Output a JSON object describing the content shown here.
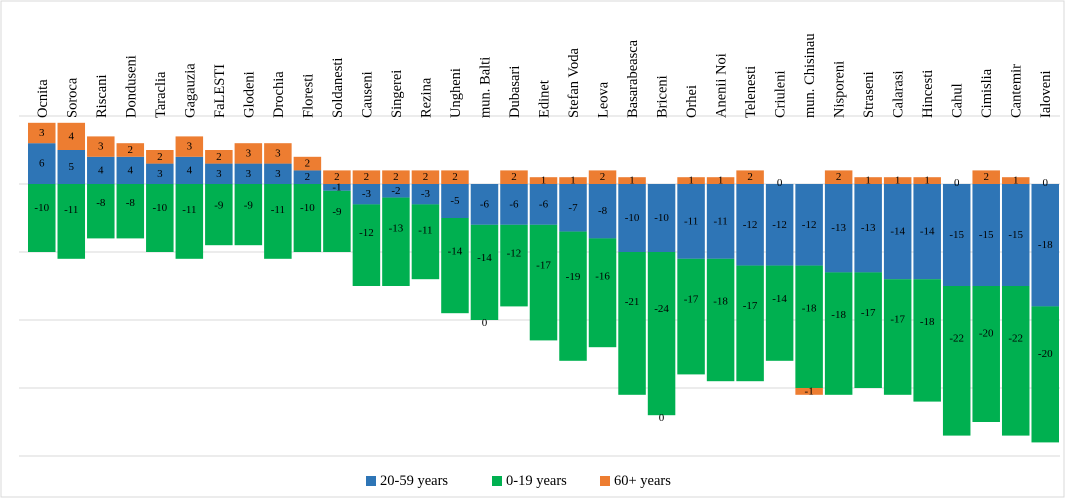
{
  "chart_data": {
    "type": "bar",
    "stacked": true,
    "title": "",
    "xlabel": "",
    "ylabel": "",
    "ylim": [
      -42,
      9
    ],
    "grid": true,
    "legend_position": "bottom",
    "categories": [
      "Ocnita",
      "Soroca",
      "Riscani",
      "Donduseni",
      "Taraclia",
      "Gagauzia",
      "FaLESTI",
      "Glodeni",
      "Drochia",
      "Floresti",
      "Soldanesti",
      "Causeni",
      "Singerei",
      "Rezina",
      "Ungheni",
      "mun. Balti",
      "Dubasari",
      "Edinet",
      "Stefan Voda",
      "Leova",
      "Basarabeasca",
      "Briceni",
      "Orhei",
      "Anenii Noi",
      "Telenesti",
      "Criuleni",
      "mun. Chisinau",
      "Nisporeni",
      "Straseni",
      "Calarasi",
      "Hincesti",
      "Cahul",
      "Cimislia",
      "Cantemir",
      "Ialoveni"
    ],
    "series": [
      {
        "name": "20-59 years",
        "color": "#2e75b6",
        "values": [
          6,
          5,
          4,
          4,
          3,
          4,
          3,
          3,
          3,
          2,
          -1,
          -3,
          -2,
          -3,
          -5,
          -6,
          -6,
          -6,
          -7,
          -8,
          -10,
          -10,
          -11,
          -11,
          -12,
          -12,
          -12,
          -13,
          -13,
          -14,
          -14,
          -15,
          -15,
          -15,
          -18
        ]
      },
      {
        "name": "0-19 years",
        "color": "#00b050",
        "values": [
          -10,
          -11,
          -8,
          -8,
          -10,
          -11,
          -9,
          -9,
          -11,
          -10,
          -9,
          -12,
          -13,
          -11,
          -14,
          -14,
          -12,
          -17,
          -19,
          -16,
          -21,
          -24,
          -17,
          -18,
          -17,
          -14,
          -18,
          -18,
          -17,
          -17,
          -18,
          -22,
          -20,
          -22,
          -20
        ]
      },
      {
        "name": "60+ years",
        "color": "#ed7d31",
        "values": [
          3,
          4,
          3,
          2,
          2,
          3,
          2,
          3,
          3,
          2,
          2,
          2,
          2,
          2,
          2,
          0,
          2,
          1,
          1,
          2,
          1,
          0,
          1,
          1,
          2,
          0,
          -1,
          2,
          1,
          1,
          1,
          0,
          2,
          1,
          0
        ]
      }
    ]
  }
}
